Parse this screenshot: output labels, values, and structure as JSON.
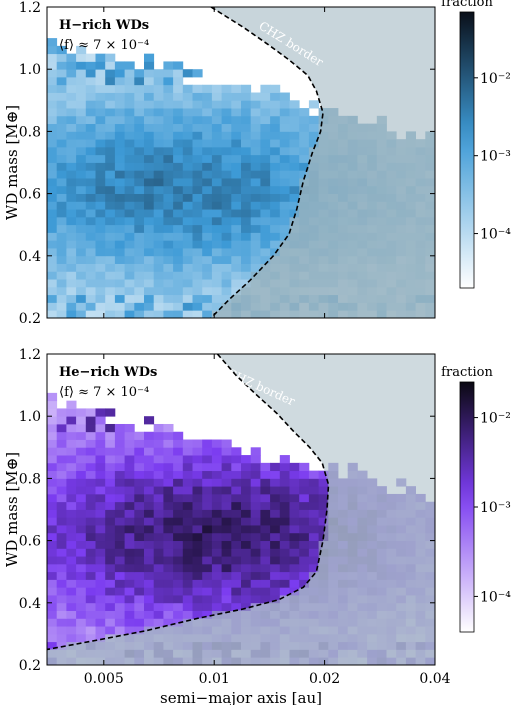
{
  "chart_data": [
    {
      "type": "heatmap",
      "title": "",
      "xlabel": "",
      "ylabel": "WD mass [M⊕]",
      "annotation_title": "H−rich WDs",
      "annotation_value": "⟨f⟩ ≈ 7 × 10⁻⁴",
      "border_label": "CHZ border",
      "x_scale": "log",
      "xlim": [
        0.0035,
        0.04
      ],
      "ylim": [
        0.2,
        1.2
      ],
      "x_ticks": [],
      "y_ticks": [
        0.2,
        0.4,
        0.6,
        0.8,
        1.0,
        1.2
      ],
      "y_tick_labels": [
        "0.2",
        "0.4",
        "0.6",
        "0.8",
        "1.0",
        "1.2"
      ],
      "colorbar": {
        "label": "fraction",
        "scale": "log",
        "range": [
          2e-05,
          0.07
        ],
        "tick_labels": [
          "10⁻²",
          "10⁻³",
          "10⁻⁴"
        ],
        "tick_values": [
          0.01,
          0.001,
          0.0001
        ],
        "color_low": "#ffffff",
        "color_mid": "#3d9ad6",
        "color_high": "#0a0f19"
      },
      "chz_border_points": [
        [
          0.0098,
          1.2
        ],
        [
          0.012,
          1.135
        ],
        [
          0.014,
          1.08
        ],
        [
          0.016,
          1.03
        ],
        [
          0.018,
          0.98
        ],
        [
          0.019,
          0.93
        ],
        [
          0.0198,
          0.86
        ],
        [
          0.0195,
          0.8
        ],
        [
          0.0185,
          0.73
        ],
        [
          0.0175,
          0.64
        ],
        [
          0.0168,
          0.55
        ],
        [
          0.016,
          0.47
        ],
        [
          0.0145,
          0.4
        ],
        [
          0.0125,
          0.32
        ],
        [
          0.011,
          0.26
        ],
        [
          0.0098,
          0.2
        ]
      ],
      "shade_color": "#9bb3bd",
      "density_profile": {
        "peak_mass": 0.62,
        "core_extent_log_au": [
          -2.5,
          -1.7
        ],
        "max_mass_detected": 1.07
      }
    },
    {
      "type": "heatmap",
      "title": "",
      "xlabel": "semi−major axis [au]",
      "ylabel": "WD mass [M⊕]",
      "annotation_title": "He−rich WDs",
      "annotation_value": "⟨f⟩ ≈ 7 × 10⁻⁴",
      "border_label": "CHZ border",
      "x_scale": "log",
      "xlim": [
        0.0035,
        0.04
      ],
      "ylim": [
        0.2,
        1.2
      ],
      "x_ticks": [
        0.005,
        0.01,
        0.02,
        0.04
      ],
      "x_tick_labels": [
        "0.005",
        "0.01",
        "0.02",
        "0.04"
      ],
      "y_ticks": [
        0.2,
        0.4,
        0.6,
        0.8,
        1.0,
        1.2
      ],
      "y_tick_labels": [
        "0.2",
        "0.4",
        "0.6",
        "0.8",
        "1.0",
        "1.2"
      ],
      "colorbar": {
        "label": "fraction",
        "scale": "log",
        "range": [
          4e-05,
          0.025
        ],
        "tick_labels": [
          "10⁻²",
          "10⁻³",
          "10⁻⁴"
        ],
        "tick_values": [
          0.01,
          0.001,
          0.0001
        ],
        "color_low": "#ffffff",
        "color_mid": "#7b3cf0",
        "color_high": "#0a0812"
      },
      "chz_border_points": [
        [
          0.0102,
          1.2
        ],
        [
          0.0115,
          1.13
        ],
        [
          0.013,
          1.07
        ],
        [
          0.0148,
          1.01
        ],
        [
          0.0165,
          0.95
        ],
        [
          0.0182,
          0.9
        ],
        [
          0.0197,
          0.85
        ],
        [
          0.0205,
          0.78
        ],
        [
          0.0203,
          0.7
        ],
        [
          0.0198,
          0.6
        ],
        [
          0.019,
          0.5
        ],
        [
          0.0175,
          0.45
        ],
        [
          0.015,
          0.41
        ],
        [
          0.012,
          0.38
        ],
        [
          0.009,
          0.35
        ],
        [
          0.0065,
          0.31
        ],
        [
          0.0048,
          0.28
        ],
        [
          0.0035,
          0.25
        ]
      ],
      "shade_color": "#a7bcc4",
      "density_profile": {
        "peak_mass": 0.62,
        "core_extent_log_au": [
          -2.3,
          -1.7
        ],
        "max_mass_detected": 1.03
      }
    }
  ]
}
